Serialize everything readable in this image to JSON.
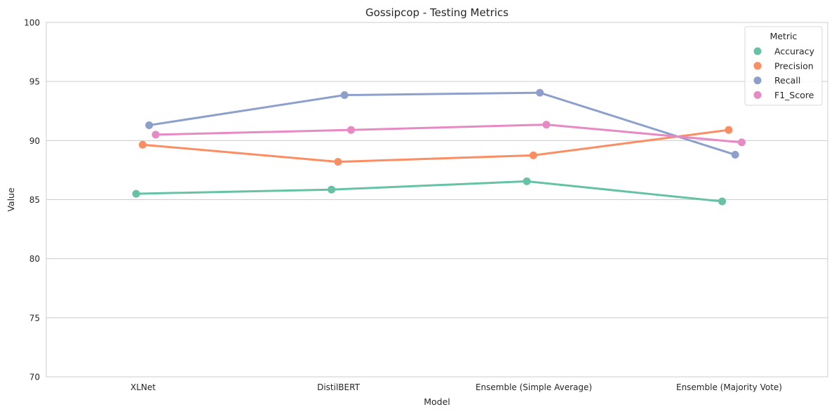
{
  "chart_data": {
    "type": "line",
    "title": "Gossipcop - Testing Metrics",
    "xlabel": "Model",
    "ylabel": "Value",
    "ylim": [
      70,
      100
    ],
    "yticks": [
      "70",
      "75",
      "80",
      "85",
      "90",
      "95",
      "100"
    ],
    "grid": "horizontal",
    "legend_title": "Metric",
    "legend_placement": "top-right",
    "categories": [
      "XLNet",
      "DistilBERT",
      "Ensemble (Simple Average)",
      "Ensemble (Majority Vote)"
    ],
    "series": [
      {
        "name": "Accuracy",
        "color": "#66c2a5",
        "values": [
          85.5,
          85.85,
          86.55,
          84.85
        ]
      },
      {
        "name": "Precision",
        "color": "#fc8d62",
        "values": [
          89.65,
          88.2,
          88.75,
          90.9
        ]
      },
      {
        "name": "Recall",
        "color": "#8da0cb",
        "values": [
          91.3,
          93.85,
          94.05,
          88.8
        ]
      },
      {
        "name": "F1_Score",
        "color": "#e78ac3",
        "values": [
          90.5,
          90.9,
          91.35,
          89.85
        ]
      }
    ]
  }
}
